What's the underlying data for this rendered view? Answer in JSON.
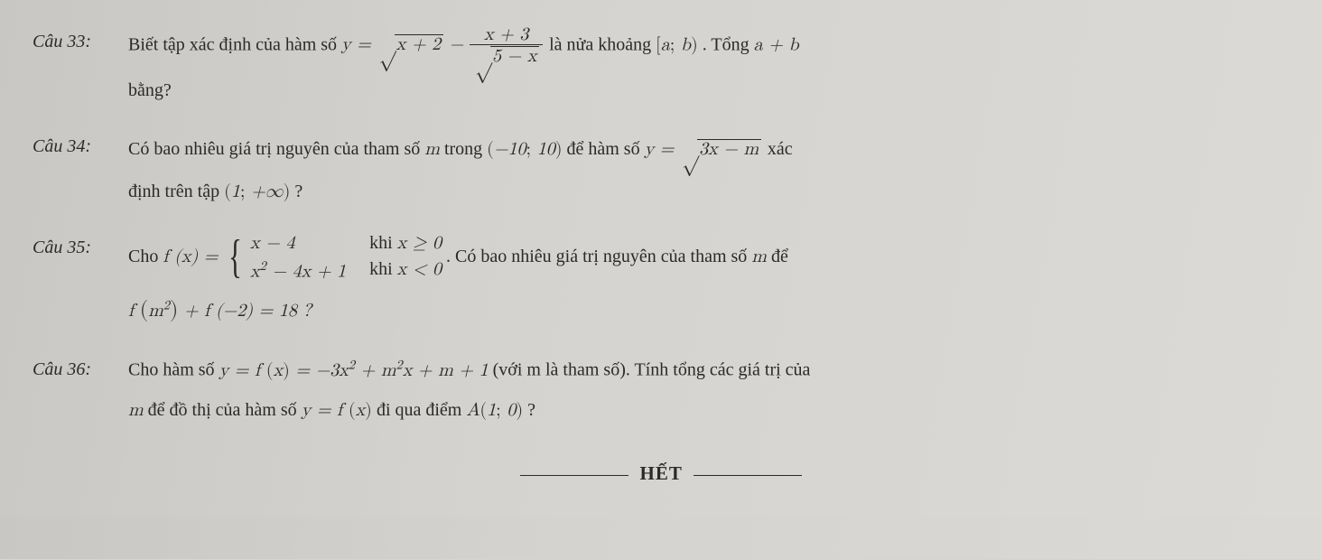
{
  "colors": {
    "text": "#2c2a27",
    "background_gradient_from": "#c9c7c3",
    "background_gradient_to": "#dcdad6",
    "rule": "#2c2a27"
  },
  "typography": {
    "body_font_family": "Palatino Linotype, Book Antiqua, Georgia, serif",
    "math_font_family": "Cambria Math, Latin Modern Math, STIX Two Math, serif",
    "body_font_size_pt": 15,
    "label_font_style": "italic",
    "line_height": 1.8
  },
  "q33": {
    "label": "Câu 33:",
    "pre": "Biết tập xác định của hàm số ",
    "formula_lhs": "y =",
    "sqrt1_radicand": "x + 2",
    "minus": " − ",
    "frac_num": "x + 3",
    "frac_den_radicand": "5 − x",
    "post1": " là nửa khoảng ",
    "interval": "[a; b)",
    "post2": ". Tổng ",
    "ab": "a + b",
    "line2": "bằng?"
  },
  "q34": {
    "label": "Câu 34:",
    "pre": "Có bao nhiêu giá trị nguyên của tham số ",
    "m": "m",
    "mid": " trong ",
    "interval": "(−10; 10)",
    "post1": " để hàm số ",
    "formula_lhs": "y =",
    "sqrt_radicand": "3x − m",
    "post2": " xác",
    "line2a": "định trên tập ",
    "interval2": "(1; +∞)",
    "qmark": " ?"
  },
  "q35": {
    "label": "Câu 35:",
    "pre": "Cho ",
    "fx": "f (x) = ",
    "case1_expr": "x − 4",
    "case1_cond": "khi x ≥ 0",
    "case2_expr": "x² − 4x + 1",
    "case2_cond": "khi x < 0",
    "post": ". Có bao nhiêu giá trị nguyên của tham số ",
    "m": "m",
    "post2": " để",
    "line2_a": "f",
    "line2_arg1_open": "(",
    "line2_arg1_m2": "m",
    "line2_arg1_sup": "2",
    "line2_arg1_close": ")",
    "line2_plus": " + f (−2) = 18 ?"
  },
  "q36": {
    "label": "Câu 36:",
    "pre": "Cho hàm số ",
    "formula": "y = f (x) = −3x² + m²x + m + 1",
    "mid": " (với m là tham số). Tính tổng các giá trị của",
    "line2_a": "m",
    "line2_b": " để đồ thị của hàm số ",
    "line2_fx": "y = f (x)",
    "line2_c": " đi qua điểm ",
    "line2_pt": "A(1; 0)",
    "line2_q": " ?"
  },
  "footer": {
    "text": "HẾT"
  }
}
